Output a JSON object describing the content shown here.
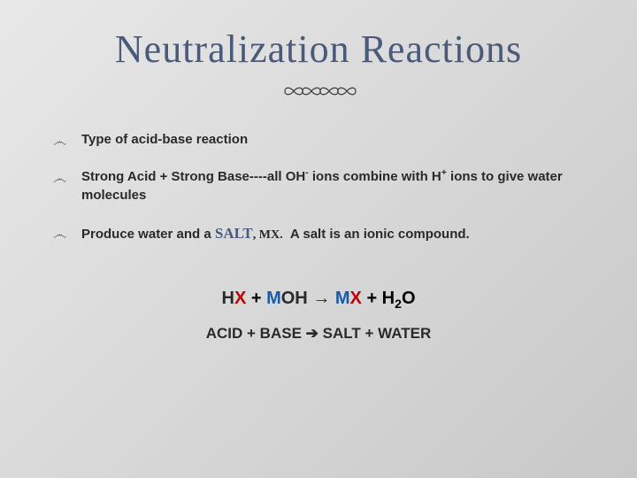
{
  "title": "Neutralization Reactions",
  "title_color": "#4a5a7a",
  "title_fontsize": 44,
  "divider": {
    "loops": 4,
    "stroke": "#3a3a3a",
    "stroke_width": 1.2
  },
  "bullets": [
    {
      "html": "Type of acid-base reaction"
    },
    {
      "html": "Strong Acid + Strong Base----all OH<sup>-</sup> ions combine with H<sup>+</sup> ions to give water molecules"
    },
    {
      "html": "Produce water and a <span class=\"salt-word\">SALT</span><span class=\"mx-word\">, MX.</span> &nbsp;A salt is an ionic compound."
    }
  ],
  "bullet_fontsize": 15,
  "bullet_color": "#2a2a2a",
  "equation1": {
    "parts": [
      {
        "text": "H",
        "cls": "hx-h"
      },
      {
        "text": "X",
        "cls": "hx-x"
      },
      {
        "text": "   +   ",
        "cls": ""
      },
      {
        "text": "M",
        "cls": "moh-m"
      },
      {
        "text": "OH",
        "cls": "moh-oh"
      },
      {
        "text": "   ",
        "cls": ""
      },
      {
        "text": "→",
        "cls": "arrow"
      },
      {
        "text": "   ",
        "cls": ""
      },
      {
        "text": "M",
        "cls": "mx-m"
      },
      {
        "text": "X",
        "cls": "mx-x"
      },
      {
        "text": "   +   H",
        "cls": ""
      },
      {
        "text": "2",
        "cls": "",
        "sub": true
      },
      {
        "text": "O",
        "cls": ""
      }
    ],
    "colors": {
      "x": "#c00000",
      "m": "#1a5aa8",
      "text": "#2a2a2a"
    },
    "fontsize": 20
  },
  "equation2": {
    "text_left": "ACID + BASE ",
    "arrow": "➔",
    "text_right": " SALT + WATER",
    "fontsize": 17
  },
  "background_gradient": [
    "#e8e8e8",
    "#d8d8d8",
    "#c8c8c8"
  ]
}
